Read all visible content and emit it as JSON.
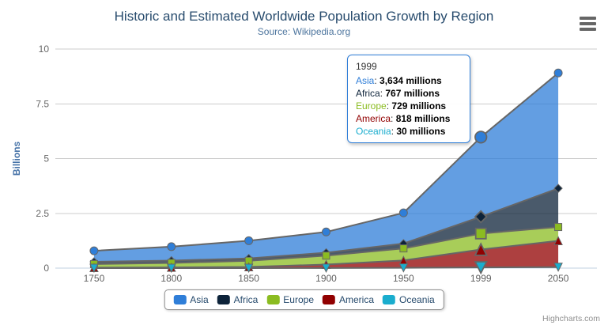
{
  "header": {
    "title": "Historic and Estimated Worldwide Population Growth by Region",
    "subtitle": "Source: Wikipedia.org"
  },
  "credits": {
    "label": "Highcharts.com"
  },
  "tooltip": {
    "header": "1999",
    "border_color": "#2f7ed8",
    "rows": [
      {
        "series": "Asia",
        "value": "3,634 millions"
      },
      {
        "series": "Africa",
        "value": "767 millions"
      },
      {
        "series": "Europe",
        "value": "729 millions"
      },
      {
        "series": "America",
        "value": "818 millions"
      },
      {
        "series": "Oceania",
        "value": "30 millions"
      }
    ]
  },
  "chart_data": {
    "type": "area",
    "stacking": "normal",
    "stack_order": "first series on top",
    "title": "Historic and Estimated Worldwide Population Growth by Region",
    "subtitle": "Source: Wikipedia.org",
    "ylabel": "Billions",
    "xlabel": "",
    "unit": "millions",
    "ylim": [
      0,
      10
    ],
    "yticks": [
      0,
      2.5,
      5,
      7.5,
      10
    ],
    "grid": "horizontal",
    "legend_position": "bottom-center",
    "line_color": "#666666",
    "hover_category_index": 5,
    "categories": [
      "1750",
      "1800",
      "1850",
      "1900",
      "1950",
      "1999",
      "2050"
    ],
    "series": [
      {
        "name": "Asia",
        "color": "#2f7ed8",
        "marker": "circle",
        "values": [
          502,
          635,
          809,
          947,
          1402,
          3634,
          5268
        ]
      },
      {
        "name": "Africa",
        "color": "#0d233a",
        "marker": "diamond",
        "values": [
          106,
          107,
          111,
          133,
          221,
          767,
          1766
        ]
      },
      {
        "name": "Europe",
        "color": "#8bbc21",
        "marker": "square",
        "values": [
          163,
          203,
          276,
          408,
          547,
          729,
          628
        ]
      },
      {
        "name": "America",
        "color": "#910000",
        "marker": "triangle",
        "values": [
          18,
          31,
          54,
          156,
          339,
          818,
          1201
        ]
      },
      {
        "name": "Oceania",
        "color": "#1aadce",
        "marker": "triangle-down",
        "values": [
          2,
          2,
          2,
          6,
          13,
          30,
          46
        ]
      }
    ]
  }
}
